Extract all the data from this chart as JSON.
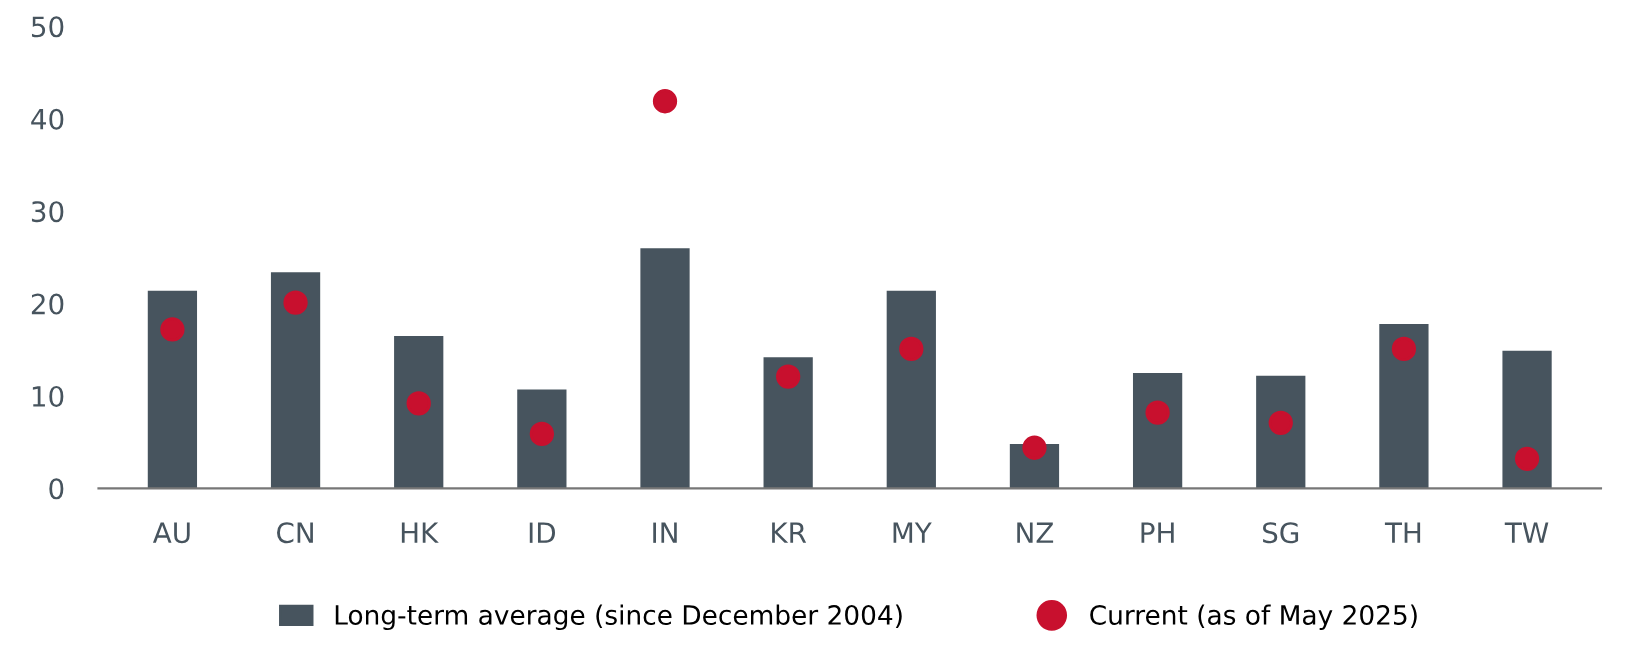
{
  "chart_data": {
    "type": "bar",
    "categories": [
      "AU",
      "CN",
      "HK",
      "ID",
      "IN",
      "KR",
      "MY",
      "NZ",
      "PH",
      "SG",
      "TH",
      "TW"
    ],
    "series": [
      {
        "name": "Long-term average (since December 2004)",
        "color": "#47545e",
        "values": [
          21.4,
          23.4,
          16.5,
          10.7,
          26.0,
          14.2,
          21.4,
          4.8,
          12.5,
          12.2,
          17.8,
          14.9
        ]
      },
      {
        "name": "Current (as of May 2025)",
        "type": "scatter",
        "color": "#c8102e",
        "values": [
          17.2,
          20.1,
          9.2,
          5.9,
          41.9,
          12.1,
          15.1,
          4.4,
          8.2,
          7.1,
          15.1,
          3.2
        ]
      }
    ],
    "ylim": [
      0,
      50
    ],
    "yticks": [
      0,
      10,
      20,
      30,
      40,
      50
    ],
    "grid": false,
    "legend": "bottom",
    "marker": "circle"
  }
}
